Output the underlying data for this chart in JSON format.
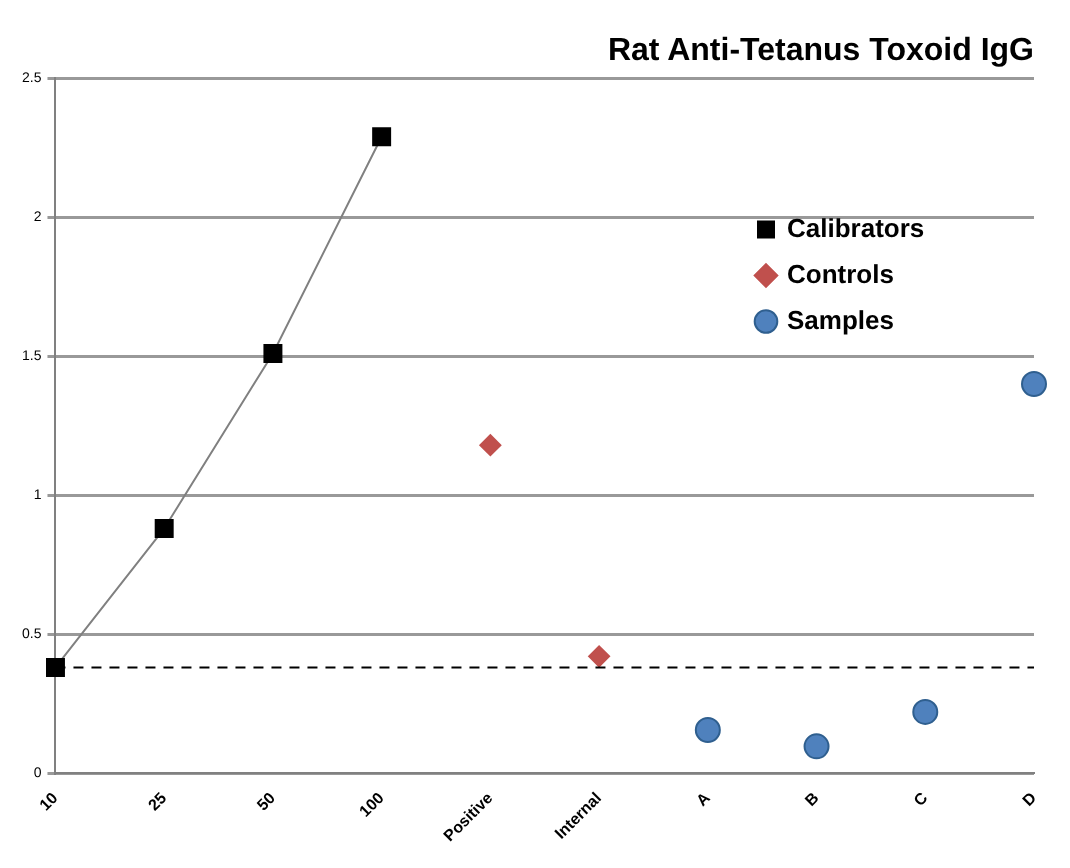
{
  "chart_data": {
    "type": "scatter",
    "title": "Rat Anti-Tetanus Toxoid IgG",
    "categories": [
      "10",
      "25",
      "50",
      "100",
      "Positive",
      "Internal",
      "A",
      "B",
      "C",
      "D"
    ],
    "series": [
      {
        "name": "Calibrators",
        "type": "line",
        "marker": "square",
        "color": "#000000",
        "values": [
          0.38,
          0.88,
          1.51,
          2.29,
          null,
          null,
          null,
          null,
          null,
          null
        ]
      },
      {
        "name": "Controls",
        "type": "scatter",
        "marker": "diamond",
        "color": "#c0504d",
        "values": [
          null,
          null,
          null,
          null,
          1.18,
          0.42,
          null,
          null,
          null,
          null
        ]
      },
      {
        "name": "Samples",
        "type": "scatter",
        "marker": "circle",
        "color": "#4f81bd",
        "values": [
          null,
          null,
          null,
          null,
          null,
          null,
          0.155,
          0.096,
          0.22,
          1.4
        ]
      }
    ],
    "ylim": [
      0,
      2.5
    ],
    "yticks": [
      0,
      0.5,
      1,
      1.5,
      2,
      2.5
    ],
    "grid": "y",
    "legend": "top right",
    "ref_lines": [
      {
        "axis": "y",
        "value": 0.38,
        "line_style": "dashed",
        "color": "#000000"
      }
    ]
  }
}
